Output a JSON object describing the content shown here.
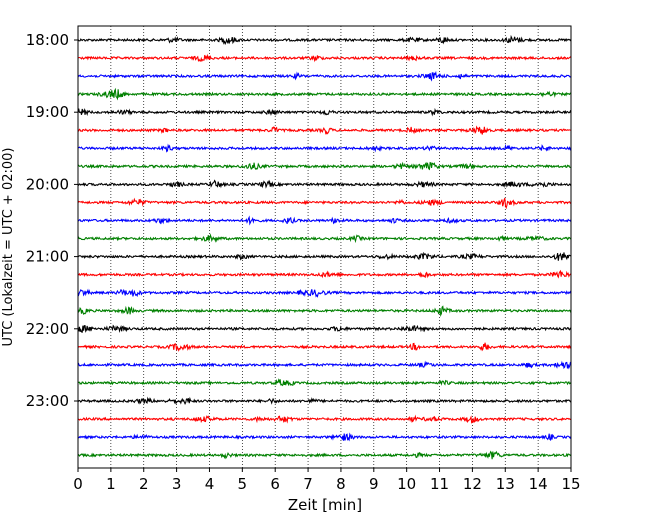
{
  "chart_data": {
    "type": "line",
    "title": "",
    "xlabel": "Zeit  [min]",
    "ylabel": "UTC (Lokalzeit = UTC + 02:00)",
    "xlim": [
      0,
      15
    ],
    "x_ticks": [
      0,
      1,
      2,
      3,
      4,
      5,
      6,
      7,
      8,
      9,
      10,
      11,
      12,
      13,
      14,
      15
    ],
    "x_tick_labels": [
      "0",
      "1",
      "2",
      "3",
      "4",
      "5",
      "6",
      "7",
      "8",
      "9",
      "10",
      "11",
      "12",
      "13",
      "14",
      "15"
    ],
    "y_tick_labels": [
      "18:00",
      "19:00",
      "20:00",
      "21:00",
      "22:00",
      "23:00"
    ],
    "y_tick_rows": [
      0,
      4,
      8,
      12,
      16,
      20
    ],
    "vertical_grid": "dotted",
    "horizontal_grid": false,
    "legend": false,
    "row_interval_minutes": 15,
    "color_cycle": [
      "#000000",
      "#ff0000",
      "#0000ff",
      "#008000"
    ],
    "series": [
      {
        "start": "18:00",
        "color": "#000000"
      },
      {
        "start": "18:15",
        "color": "#ff0000"
      },
      {
        "start": "18:30",
        "color": "#0000ff"
      },
      {
        "start": "18:45",
        "color": "#008000"
      },
      {
        "start": "19:00",
        "color": "#000000"
      },
      {
        "start": "19:15",
        "color": "#ff0000"
      },
      {
        "start": "19:30",
        "color": "#0000ff"
      },
      {
        "start": "19:45",
        "color": "#008000"
      },
      {
        "start": "20:00",
        "color": "#000000"
      },
      {
        "start": "20:15",
        "color": "#ff0000"
      },
      {
        "start": "20:30",
        "color": "#0000ff"
      },
      {
        "start": "20:45",
        "color": "#008000"
      },
      {
        "start": "21:00",
        "color": "#000000"
      },
      {
        "start": "21:15",
        "color": "#ff0000"
      },
      {
        "start": "21:30",
        "color": "#0000ff"
      },
      {
        "start": "21:45",
        "color": "#008000"
      },
      {
        "start": "22:00",
        "color": "#000000"
      },
      {
        "start": "22:15",
        "color": "#ff0000"
      },
      {
        "start": "22:30",
        "color": "#0000ff"
      },
      {
        "start": "22:45",
        "color": "#008000"
      },
      {
        "start": "23:00",
        "color": "#000000"
      },
      {
        "start": "23:15",
        "color": "#ff0000"
      },
      {
        "start": "23:30",
        "color": "#0000ff"
      },
      {
        "start": "23:45",
        "color": "#008000"
      }
    ]
  }
}
